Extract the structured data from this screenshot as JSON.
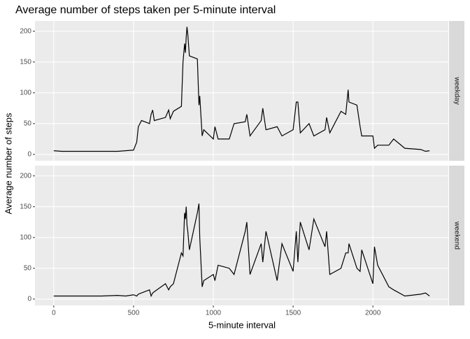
{
  "chart_data": {
    "type": "line",
    "title": "Average number of steps taken per 5-minute interval",
    "x_label": "5-minute interval",
    "y_label": "Average number of steps",
    "x": [
      0,
      50,
      100,
      200,
      300,
      400,
      450,
      500,
      520,
      530,
      550,
      600,
      610,
      620,
      630,
      700,
      720,
      730,
      750,
      800,
      810,
      820,
      825,
      830,
      835,
      840,
      850,
      900,
      910,
      915,
      930,
      940,
      1000,
      1010,
      1030,
      1100,
      1130,
      1200,
      1210,
      1230,
      1300,
      1310,
      1330,
      1400,
      1430,
      1500,
      1520,
      1530,
      1545,
      1600,
      1630,
      1700,
      1710,
      1730,
      1800,
      1830,
      1845,
      1850,
      1900,
      1920,
      1930,
      2000,
      2010,
      2030,
      2100,
      2130,
      2200,
      2300,
      2330,
      2355
    ],
    "series": [
      {
        "name": "weekday",
        "color": "#000000",
        "values": [
          6,
          5,
          5,
          5,
          5,
          5,
          6,
          7,
          20,
          45,
          55,
          50,
          65,
          72,
          55,
          60,
          72,
          58,
          70,
          78,
          150,
          180,
          165,
          190,
          207,
          195,
          160,
          155,
          80,
          95,
          30,
          40,
          25,
          45,
          25,
          25,
          50,
          53,
          65,
          30,
          55,
          75,
          40,
          45,
          30,
          40,
          85,
          85,
          35,
          50,
          30,
          40,
          60,
          35,
          70,
          65,
          105,
          85,
          80,
          45,
          30,
          30,
          10,
          15,
          15,
          25,
          10,
          8,
          5,
          6
        ]
      },
      {
        "name": "weekend",
        "color": "#000000",
        "values": [
          5,
          5,
          5,
          5,
          5,
          6,
          5,
          7,
          5,
          8,
          10,
          15,
          5,
          10,
          12,
          25,
          15,
          20,
          25,
          75,
          70,
          140,
          130,
          150,
          120,
          110,
          80,
          140,
          155,
          100,
          20,
          30,
          40,
          30,
          55,
          50,
          40,
          110,
          125,
          40,
          90,
          60,
          110,
          30,
          90,
          45,
          110,
          60,
          125,
          80,
          130,
          85,
          110,
          40,
          50,
          75,
          75,
          90,
          50,
          45,
          80,
          25,
          85,
          55,
          20,
          15,
          5,
          8,
          10,
          5
        ]
      }
    ],
    "xlim": [
      -117.75,
      2472.75
    ],
    "xticks": [
      0,
      500,
      1000,
      1500,
      2000
    ],
    "ylim": [
      -10.3,
      216.6
    ],
    "yticks": [
      0,
      50,
      100,
      150,
      200
    ],
    "grid": true
  }
}
